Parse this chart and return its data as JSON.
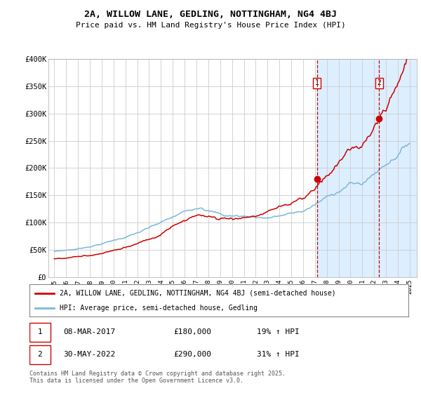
{
  "title_line1": "2A, WILLOW LANE, GEDLING, NOTTINGHAM, NG4 4BJ",
  "title_line2": "Price paid vs. HM Land Registry's House Price Index (HPI)",
  "legend_line1": "2A, WILLOW LANE, GEDLING, NOTTINGHAM, NG4 4BJ (semi-detached house)",
  "legend_line2": "HPI: Average price, semi-detached house, Gedling",
  "footnote": "Contains HM Land Registry data © Crown copyright and database right 2025.\nThis data is licensed under the Open Government Licence v3.0.",
  "sale1_date": "08-MAR-2017",
  "sale1_price": "£180,000",
  "sale1_hpi": "19% ↑ HPI",
  "sale2_date": "30-MAY-2022",
  "sale2_price": "£290,000",
  "sale2_hpi": "31% ↑ HPI",
  "hpi_color": "#7ab8d9",
  "price_color": "#cc0000",
  "sale_dot_color": "#cc0000",
  "vline_color": "#cc0000",
  "shade_color": "#ddeeff",
  "ylim": [
    0,
    400000
  ],
  "yticks": [
    0,
    50000,
    100000,
    150000,
    200000,
    250000,
    300000,
    350000,
    400000
  ],
  "ytick_labels": [
    "£0",
    "£50K",
    "£100K",
    "£150K",
    "£200K",
    "£250K",
    "£300K",
    "£350K",
    "£400K"
  ],
  "sale1_year": 2017.18,
  "sale1_value": 180000,
  "sale2_year": 2022.41,
  "sale2_value": 290000,
  "background_color": "#ffffff",
  "grid_color": "#cccccc"
}
